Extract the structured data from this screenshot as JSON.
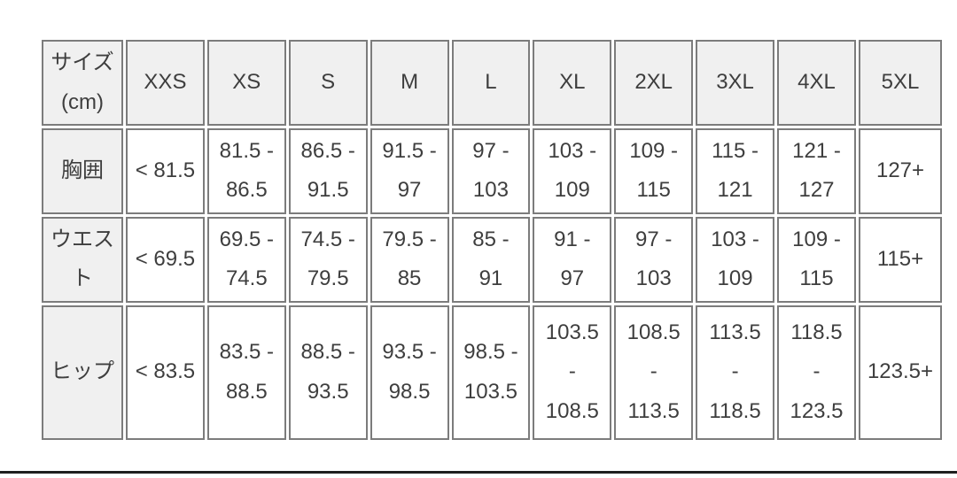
{
  "table": {
    "corner_header": "サイズ (cm)",
    "columns": [
      "XXS",
      "XS",
      "S",
      "M",
      "L",
      "XL",
      "2XL",
      "3XL",
      "4XL",
      "5XL"
    ],
    "rows": [
      {
        "label": "胸囲",
        "values": [
          "< 81.5",
          "81.5 - 86.5",
          "86.5 - 91.5",
          "91.5 - 97",
          "97 - 103",
          "103 - 109",
          "109 - 115",
          "115 - 121",
          "121 - 127",
          "127+"
        ]
      },
      {
        "label": "ウエスト",
        "values": [
          "< 69.5",
          "69.5 - 74.5",
          "74.5 - 79.5",
          "79.5 - 85",
          "85 - 91",
          "91 - 97",
          "97 - 103",
          "103 - 109",
          "109 - 115",
          "115+"
        ]
      },
      {
        "label": "ヒップ",
        "values": [
          "< 83.5",
          "83.5 - 88.5",
          "88.5 - 93.5",
          "93.5 - 98.5",
          "98.5 - 103.5",
          "103.5 - 108.5",
          "108.5 - 113.5",
          "113.5 - 118.5",
          "118.5 - 123.5",
          "123.5+"
        ]
      }
    ]
  },
  "colors": {
    "header_background": "#f0f0f0",
    "cell_background": "#ffffff",
    "border": "#7c7c7c",
    "text": "#3e3e3e",
    "bottom_divider": "#1f1f1f"
  }
}
